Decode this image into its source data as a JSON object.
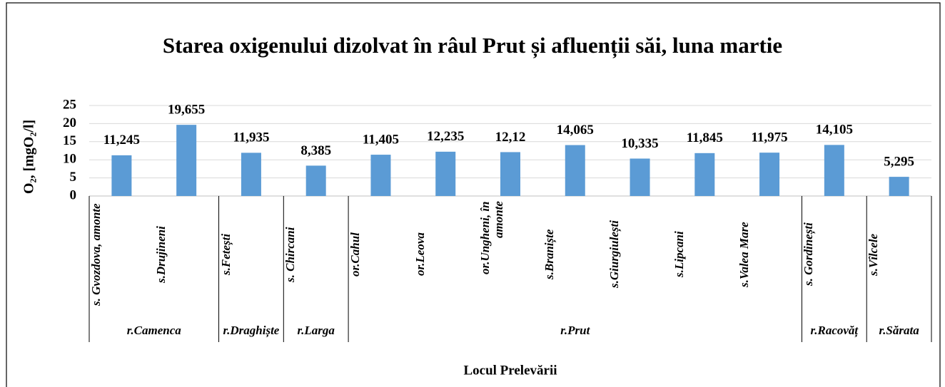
{
  "chart_data": {
    "type": "bar",
    "title": "Starea oxigenului dizolvat în râul Prut și afluenții săi, luna martie",
    "y_label": "O₂, [mgO₂/l]",
    "x_label": "Locul Prelevării",
    "categories": [
      "s. Gvozdova, amonte",
      "s.Drujineni",
      "s.Fetești",
      "s. Chircani",
      "or.Cahul",
      "or.Leova",
      "or.Ungheni, în amonte",
      "s.Braniște",
      "s.Giurgiulești",
      "s.Lipcani",
      "s.Valea Mare",
      "s. Gordinești",
      "s.Vîlcele"
    ],
    "groups": [
      {
        "name": "r.Camenca",
        "count": 2
      },
      {
        "name": "r.Draghiște",
        "count": 1
      },
      {
        "name": "r.Larga",
        "count": 1
      },
      {
        "name": "r.Prut",
        "count": 7
      },
      {
        "name": "r.Racovăț",
        "count": 1
      },
      {
        "name": "r.Sărata",
        "count": 1
      }
    ],
    "values": [
      11.245,
      19.655,
      11.935,
      8.385,
      11.405,
      12.235,
      12.12,
      14.065,
      10.335,
      11.845,
      11.975,
      14.105,
      5.295
    ],
    "value_labels": [
      "11,245",
      "19,655",
      "11,935",
      "8,385",
      "11,405",
      "12,235",
      "12,12",
      "14,065",
      "10,335",
      "11,845",
      "11,975",
      "14,105",
      "5,295"
    ],
    "color": "#5b9bd5",
    "ylim": [
      0,
      25
    ],
    "yticks": [
      0,
      5,
      10,
      15,
      20,
      25
    ],
    "grid": true
  }
}
